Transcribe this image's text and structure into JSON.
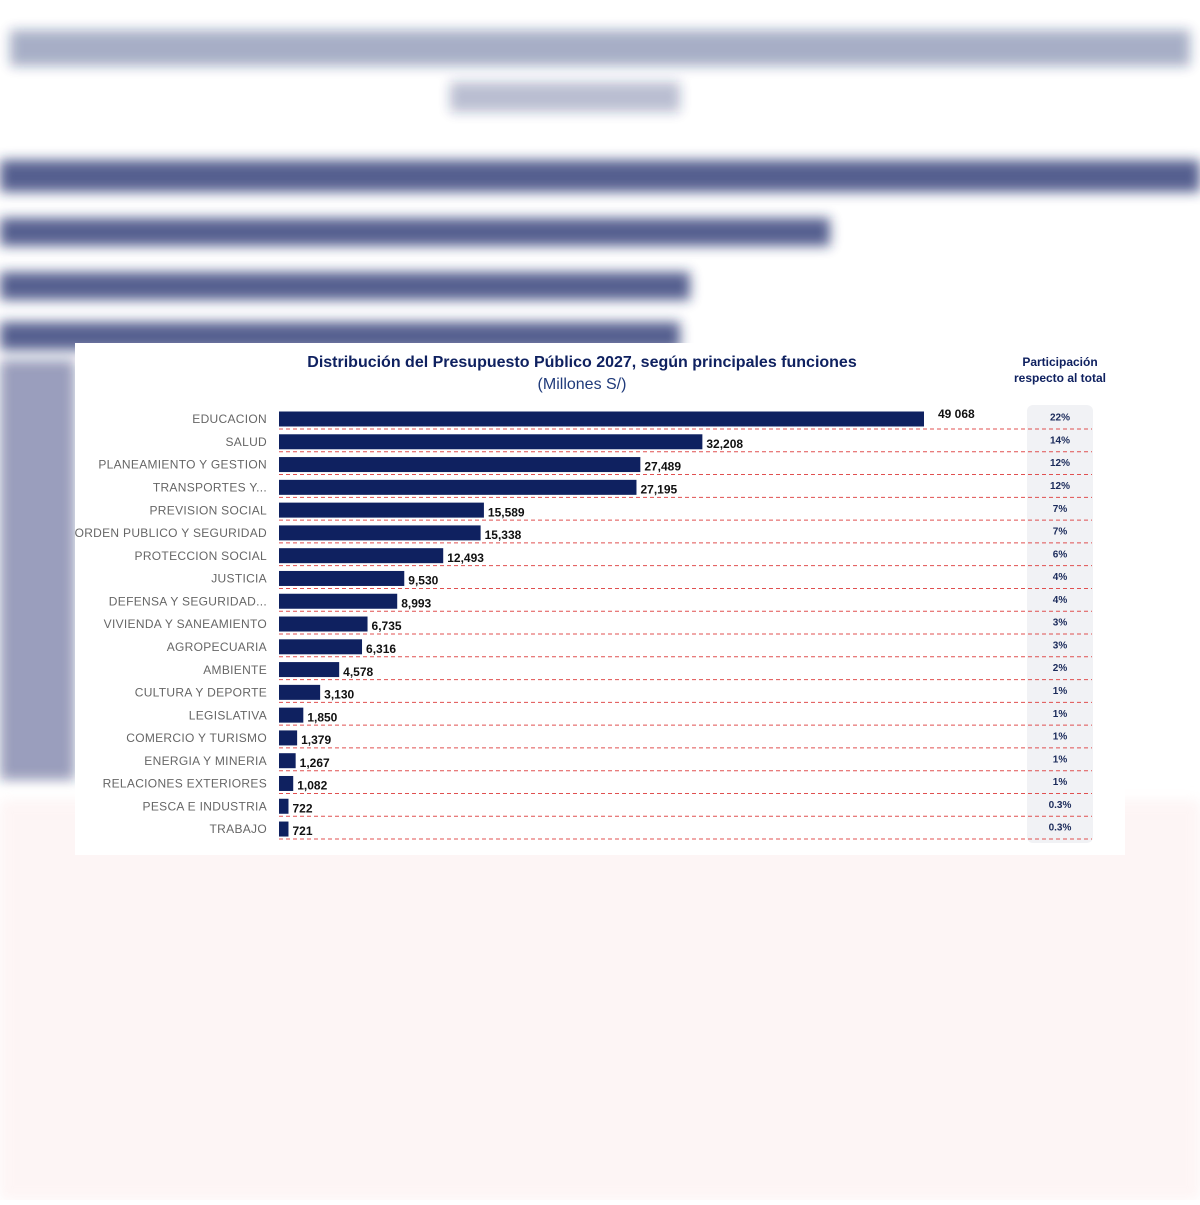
{
  "chart_data": {
    "type": "bar",
    "orientation": "horizontal",
    "title": "Distribución del Presupuesto Público 2027, según principales funciones",
    "subtitle": "(Millones S/)",
    "categories": [
      "EDUCACION",
      "SALUD",
      "PLANEAMIENTO Y GESTION",
      "TRANSPORTES Y...",
      "PREVISION SOCIAL",
      "ORDEN PUBLICO Y SEGURIDAD",
      "PROTECCION SOCIAL",
      "JUSTICIA",
      "DEFENSA Y SEGURIDAD...",
      "VIVIENDA Y SANEAMIENTO",
      "AGROPECUARIA",
      "AMBIENTE",
      "CULTURA Y DEPORTE",
      "LEGISLATIVA",
      "COMERCIO Y TURISMO",
      "ENERGIA Y MINERIA",
      "RELACIONES EXTERIORES",
      "PESCA E INDUSTRIA",
      "TRABAJO"
    ],
    "values": [
      49068,
      32208,
      27489,
      27195,
      15589,
      15338,
      12493,
      9530,
      8993,
      6735,
      6316,
      4578,
      3130,
      1850,
      1379,
      1267,
      1082,
      722,
      721
    ],
    "value_labels": [
      "49 068",
      "32,208",
      "27,489",
      "27,195",
      "15,589",
      "15,338",
      "12,493",
      "9,530",
      "8,993",
      "6,735",
      "6,316",
      "4,578",
      "3,130",
      "1,850",
      "1,379",
      "1,267",
      "1,082",
      "722",
      "721"
    ],
    "color": "#0f2160",
    "xlim": [
      0,
      49068
    ],
    "share_title": [
      "Participación",
      "respecto al total"
    ],
    "shares": {
      "values": [
        22,
        14,
        12,
        12,
        7,
        7,
        6,
        4,
        4,
        3,
        3,
        2,
        1,
        1,
        1,
        1,
        1,
        0.3,
        0.3
      ],
      "value_labels": [
        "22%",
        "14%",
        "12%",
        "12%",
        "7%",
        "7%",
        "6%",
        "4%",
        "4%",
        "3%",
        "3%",
        "2%",
        "1%",
        "1%",
        "1%",
        "1%",
        "1%",
        "0.3%",
        "0.3%"
      ]
    }
  }
}
